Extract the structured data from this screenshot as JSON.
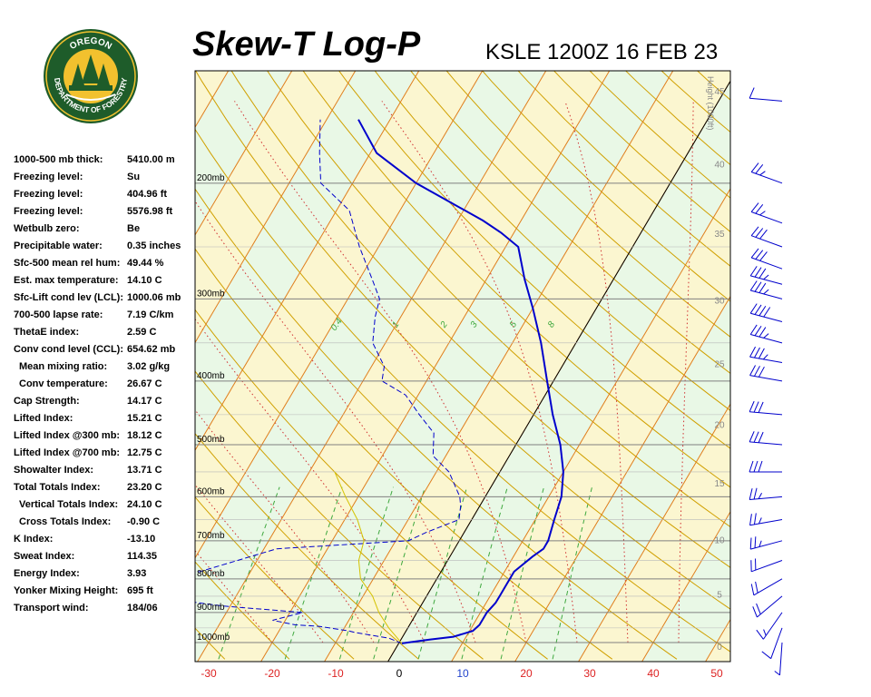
{
  "header": {
    "title": "Skew-T Log-P",
    "station_time": "KSLE 1200Z 16 FEB 23"
  },
  "logo": {
    "text_top": "OREGON",
    "text_bottom": "DEPARTMENT OF FORESTRY",
    "colors": {
      "ring": "#1e5c2a",
      "fill": "#f2c12e",
      "tree": "#1e5c2a"
    }
  },
  "stats": [
    {
      "label": "1000-500 mb thick:",
      "value": "5410.00 m",
      "indent": false
    },
    {
      "label": "Freezing level:",
      "value": "Su",
      "indent": false
    },
    {
      "label": "Freezing level:",
      "value": "404.96 ft",
      "indent": false
    },
    {
      "label": "Freezing level:",
      "value": "5576.98 ft",
      "indent": false
    },
    {
      "label": "Wetbulb zero:",
      "value": "Be",
      "indent": false
    },
    {
      "label": "Precipitable water:",
      "value": "0.35 inches",
      "indent": false
    },
    {
      "label": "Sfc-500 mean rel hum:",
      "value": "49.44 %",
      "indent": false
    },
    {
      "label": "Est. max temperature:",
      "value": "14.10 C",
      "indent": false
    },
    {
      "label": "Sfc-Lift cond lev (LCL):",
      "value": "1000.06 mb",
      "indent": false
    },
    {
      "label": "700-500 lapse rate:",
      "value": "7.19 C/km",
      "indent": false
    },
    {
      "label": "ThetaE index:",
      "value": "2.59 C",
      "indent": false
    },
    {
      "label": "Conv cond level (CCL):",
      "value": "654.62 mb",
      "indent": false
    },
    {
      "label": "Mean mixing ratio:",
      "value": "3.02 g/kg",
      "indent": true
    },
    {
      "label": "Conv temperature:",
      "value": "26.67 C",
      "indent": true
    },
    {
      "label": "Cap Strength:",
      "value": "14.17 C",
      "indent": false
    },
    {
      "label": "Lifted Index:",
      "value": "15.21 C",
      "indent": false
    },
    {
      "label": "Lifted Index @300 mb:",
      "value": "18.12 C",
      "indent": false
    },
    {
      "label": "Lifted Index @700 mb:",
      "value": "12.75 C",
      "indent": false
    },
    {
      "label": "Showalter Index:",
      "value": "13.71 C",
      "indent": false
    },
    {
      "label": "Total Totals Index:",
      "value": "23.20 C",
      "indent": false
    },
    {
      "label": "Vertical Totals Index:",
      "value": "24.10 C",
      "indent": true
    },
    {
      "label": "Cross Totals Index:",
      "value": "-0.90 C",
      "indent": true
    },
    {
      "label": "K Index:",
      "value": "-13.10",
      "indent": false
    },
    {
      "label": "Sweat Index:",
      "value": "114.35",
      "indent": false
    },
    {
      "label": "Energy Index:",
      "value": "3.93",
      "indent": false
    },
    {
      "label": "Yonker Mixing Height:",
      "value": "695 ft",
      "indent": false
    },
    {
      "label": "Transport wind:",
      "value": "184/06",
      "indent": false
    }
  ],
  "chart_data": {
    "type": "line",
    "x_ticks": [
      "-30",
      "-20",
      "-10",
      "0",
      "10",
      "20",
      "30",
      "40",
      "50"
    ],
    "pressure_labels": [
      "200mb",
      "300mb",
      "400mb",
      "500mb",
      "600mb",
      "700mb",
      "800mb",
      "900mb",
      "1000mb"
    ],
    "height_axis_title": "Height (1000ft)",
    "height_ticks": [
      "0",
      "5",
      "10",
      "15",
      "20",
      "25",
      "30",
      "35",
      "40",
      "45",
      "50"
    ],
    "mixing_ratio_labels": [
      "0.4",
      "1",
      "2",
      "3",
      "5",
      "8"
    ],
    "series": [
      {
        "key": "temperature",
        "color": "#0000cc",
        "points": [
          [
            1003,
            0.5
          ],
          [
            990,
            4.5
          ],
          [
            980,
            8
          ],
          [
            960,
            10.5
          ],
          [
            940,
            11
          ],
          [
            900,
            11
          ],
          [
            870,
            11.5
          ],
          [
            850,
            11.5
          ],
          [
            820,
            11.5
          ],
          [
            780,
            11.5
          ],
          [
            740,
            13
          ],
          [
            720,
            14
          ],
          [
            700,
            14
          ],
          [
            650,
            13
          ],
          [
            600,
            12
          ],
          [
            550,
            10
          ],
          [
            500,
            7
          ],
          [
            450,
            3
          ],
          [
            400,
            -1
          ],
          [
            350,
            -5.5
          ],
          [
            310,
            -10
          ],
          [
            280,
            -14
          ],
          [
            250,
            -18
          ],
          [
            238,
            -22
          ],
          [
            228,
            -26
          ],
          [
            200,
            -40
          ],
          [
            180,
            -49
          ],
          [
            160,
            -55
          ]
        ]
      },
      {
        "key": "dewpoint",
        "color": "#0000cc",
        "dashed": true,
        "points": [
          [
            1003,
            0.5
          ],
          [
            985,
            -2
          ],
          [
            975,
            -5
          ],
          [
            965,
            -8
          ],
          [
            960,
            -9
          ],
          [
            945,
            -14
          ],
          [
            940,
            -18
          ],
          [
            925,
            -22
          ],
          [
            900,
            -18
          ],
          [
            880,
            -31
          ],
          [
            850,
            -44
          ],
          [
            820,
            -62
          ],
          [
            800,
            -52
          ],
          [
            780,
            -38
          ],
          [
            720,
            -28
          ],
          [
            700,
            -8
          ],
          [
            680,
            -6
          ],
          [
            650,
            -2
          ],
          [
            620,
            -3
          ],
          [
            600,
            -4
          ],
          [
            550,
            -8
          ],
          [
            520,
            -12
          ],
          [
            480,
            -14
          ],
          [
            450,
            -18
          ],
          [
            420,
            -22
          ],
          [
            400,
            -27
          ],
          [
            380,
            -28
          ],
          [
            350,
            -32
          ],
          [
            320,
            -34
          ],
          [
            300,
            -35
          ],
          [
            280,
            -38
          ],
          [
            250,
            -43
          ],
          [
            220,
            -48
          ],
          [
            200,
            -55
          ],
          [
            180,
            -58
          ],
          [
            160,
            -61
          ]
        ]
      },
      {
        "key": "parcel",
        "color": "#d4c200",
        "points": [
          [
            1003,
            0.5
          ],
          [
            980,
            -1
          ],
          [
            950,
            -3
          ],
          [
            900,
            -6
          ],
          [
            850,
            -8.5
          ],
          [
            800,
            -12
          ],
          [
            750,
            -14
          ],
          [
            700,
            -15
          ],
          [
            650,
            -18
          ],
          [
            600,
            -22
          ],
          [
            550,
            -26
          ]
        ]
      }
    ],
    "wind_barbs": [
      {
        "p": 1000,
        "dir": 184,
        "spd": 6
      },
      {
        "p": 950,
        "dir": 200,
        "spd": 10
      },
      {
        "p": 900,
        "dir": 215,
        "spd": 15
      },
      {
        "p": 850,
        "dir": 230,
        "spd": 20
      },
      {
        "p": 800,
        "dir": 240,
        "spd": 20
      },
      {
        "p": 750,
        "dir": 250,
        "spd": 20
      },
      {
        "p": 700,
        "dir": 255,
        "spd": 25
      },
      {
        "p": 650,
        "dir": 260,
        "spd": 25
      },
      {
        "p": 600,
        "dir": 265,
        "spd": 25
      },
      {
        "p": 550,
        "dir": 270,
        "spd": 30
      },
      {
        "p": 500,
        "dir": 275,
        "spd": 30
      },
      {
        "p": 450,
        "dir": 275,
        "spd": 30
      },
      {
        "p": 400,
        "dir": 280,
        "spd": 30
      },
      {
        "p": 375,
        "dir": 280,
        "spd": 35
      },
      {
        "p": 350,
        "dir": 285,
        "spd": 35
      },
      {
        "p": 325,
        "dir": 285,
        "spd": 40
      },
      {
        "p": 300,
        "dir": 285,
        "spd": 35
      },
      {
        "p": 285,
        "dir": 285,
        "spd": 35
      },
      {
        "p": 270,
        "dir": 290,
        "spd": 30
      },
      {
        "p": 250,
        "dir": 290,
        "spd": 30
      },
      {
        "p": 230,
        "dir": 290,
        "spd": 25
      },
      {
        "p": 200,
        "dir": 290,
        "spd": 25
      },
      {
        "p": 150,
        "dir": 275,
        "spd": 10
      }
    ],
    "colors": {
      "isotherm": "#e07e1c",
      "dry_adiabat": "#d0a000",
      "moist_adiabat": "#d03030",
      "mixing_ratio": "#3ea83e",
      "isobar": "#808080",
      "bg_green": "#e9f8e6",
      "bg_yellow": "#fbf6d0",
      "x_tick_red": "#dd2222",
      "x_tick_blue": "#2244cc",
      "x_tick_zero": "#000000"
    }
  }
}
